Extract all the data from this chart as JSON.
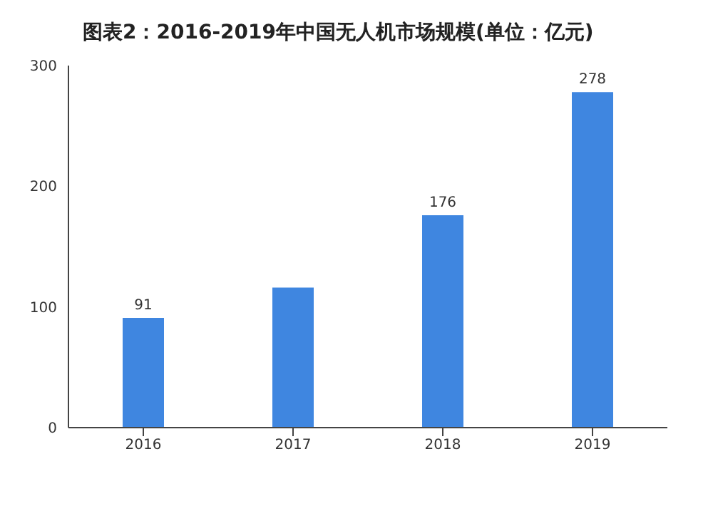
{
  "chart_data": {
    "type": "bar",
    "title": "图表2：2016-2019年中国无人机市场规模(单位：亿元)",
    "categories": [
      "2016",
      "2017",
      "2018",
      "2019"
    ],
    "values": [
      91,
      116,
      176,
      278
    ],
    "value_labels": [
      "91",
      null,
      "176",
      "278"
    ],
    "color": "#3f86e0",
    "ylim": [
      0,
      300
    ],
    "yticks": [
      0,
      100,
      200,
      300
    ],
    "grid": false,
    "legend": false
  }
}
